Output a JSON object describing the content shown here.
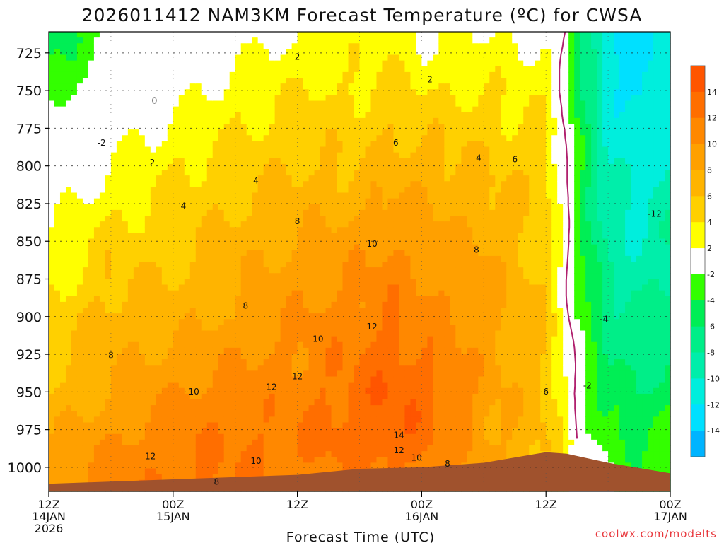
{
  "chart_data": {
    "type": "heatmap",
    "title": "2026011412 NAM3KM Forecast Temperature (ºC) for CWSA",
    "xlabel": "Forecast Time (UTC)",
    "credit": "coolwx.com/modelts",
    "y_axis": {
      "unit": "hPa",
      "range": [
        1016,
        711
      ],
      "ticks": [
        725,
        750,
        775,
        800,
        825,
        850,
        875,
        900,
        925,
        950,
        975,
        1000
      ],
      "tick_labels": [
        "725",
        "750",
        "775",
        "800",
        "825",
        "850",
        "875",
        "900",
        "925",
        "950",
        "975",
        "1000"
      ]
    },
    "x_axis": {
      "unit": "forecast hours",
      "range": [
        0,
        60
      ],
      "ticks": [
        {
          "hour": 0,
          "lines": [
            "12Z",
            "14JAN",
            "2026"
          ]
        },
        {
          "hour": 12,
          "lines": [
            "00Z",
            "15JAN"
          ]
        },
        {
          "hour": 24,
          "lines": [
            "12Z"
          ]
        },
        {
          "hour": 36,
          "lines": [
            "00Z",
            "16JAN"
          ]
        },
        {
          "hour": 48,
          "lines": [
            "12Z"
          ]
        },
        {
          "hour": 60,
          "lines": [
            "00Z",
            "17JAN"
          ]
        }
      ]
    },
    "colorbar": {
      "labels": [
        "14",
        "12",
        "10",
        "8",
        "6",
        "4",
        "2",
        "-2",
        "-4",
        "-6",
        "-8",
        "-10",
        "-12",
        "-14"
      ],
      "bins": [
        {
          "min": 14,
          "max": 16,
          "color": "#ff5500"
        },
        {
          "min": 12,
          "max": 14,
          "color": "#ff6e00"
        },
        {
          "min": 10,
          "max": 12,
          "color": "#ff8800"
        },
        {
          "min": 8,
          "max": 10,
          "color": "#ffa000"
        },
        {
          "min": 6,
          "max": 8,
          "color": "#ffb400"
        },
        {
          "min": 4,
          "max": 6,
          "color": "#ffd000"
        },
        {
          "min": 2,
          "max": 4,
          "color": "#ffff00"
        },
        {
          "min": -2,
          "max": 2,
          "color": "#ffffff"
        },
        {
          "min": -4,
          "max": -2,
          "color": "#33ff00"
        },
        {
          "min": -6,
          "max": -4,
          "color": "#00ee55"
        },
        {
          "min": -8,
          "max": -6,
          "color": "#00ee88"
        },
        {
          "min": -10,
          "max": -8,
          "color": "#00eeaa"
        },
        {
          "min": -12,
          "max": -10,
          "color": "#00eedd"
        },
        {
          "min": -14,
          "max": -12,
          "color": "#00e0ff"
        },
        {
          "min": -16,
          "max": -14,
          "color": "#00b4ff"
        }
      ]
    },
    "ground_color": "#a0522d",
    "freezing_line_color": "#b0206e",
    "ground_pressure": [
      {
        "hour": 0,
        "p": 1011
      },
      {
        "hour": 12,
        "p": 1008
      },
      {
        "hour": 24,
        "p": 1005
      },
      {
        "hour": 30,
        "p": 1001
      },
      {
        "hour": 36,
        "p": 1000
      },
      {
        "hour": 42,
        "p": 997
      },
      {
        "hour": 48,
        "p": 990
      },
      {
        "hour": 50,
        "p": 991
      },
      {
        "hour": 54,
        "p": 997
      },
      {
        "hour": 60,
        "p": 1004
      }
    ],
    "profiles_hours": [
      0,
      6,
      12,
      18,
      24,
      30,
      33,
      36,
      42,
      48,
      50,
      51,
      54,
      57,
      60
    ],
    "profiles_pressure": [
      715,
      750,
      800,
      850,
      900,
      950,
      985,
      1010
    ],
    "profiles_temp": [
      [
        -5,
        -3,
        0,
        2,
        4,
        6,
        8,
        9
      ],
      [
        -2,
        0,
        2,
        5,
        7,
        8,
        10,
        11
      ],
      [
        0,
        1,
        4,
        5,
        7,
        10,
        12,
        12
      ],
      [
        1,
        3,
        5,
        7,
        8,
        11,
        12,
        12
      ],
      [
        2,
        4,
        6,
        8,
        10,
        11,
        12,
        11
      ],
      [
        3,
        4,
        6,
        9,
        11,
        13,
        13,
        11
      ],
      [
        3,
        5,
        7,
        10,
        12,
        14,
        14,
        11
      ],
      [
        2,
        4,
        7,
        9,
        11,
        13,
        13,
        10
      ],
      [
        2,
        4,
        6,
        8,
        9,
        9,
        9,
        8
      ],
      [
        2,
        3,
        5,
        5,
        6,
        6,
        6,
        6
      ],
      [
        -1,
        -1,
        0,
        0,
        1,
        2,
        3,
        3
      ],
      [
        -5,
        -5,
        -3,
        -3,
        -2,
        -1,
        0,
        0
      ],
      [
        -12,
        -11,
        -10,
        -9,
        -7,
        -5,
        -3,
        -2
      ],
      [
        -13,
        -13,
        -11,
        -10,
        -8,
        -6,
        -4,
        -3
      ],
      [
        -11,
        -11,
        -10,
        -8,
        -7,
        -5,
        -3,
        -2
      ]
    ],
    "contour_labels": [
      {
        "text": "2",
        "hour": 24.0,
        "p": 728
      },
      {
        "text": "2",
        "hour": 36.8,
        "p": 743
      },
      {
        "text": "0",
        "hour": 10.2,
        "p": 757
      },
      {
        "text": "-2",
        "hour": 5.1,
        "p": 785
      },
      {
        "text": "6",
        "hour": 33.5,
        "p": 785
      },
      {
        "text": "2",
        "hour": 10.0,
        "p": 798
      },
      {
        "text": "4",
        "hour": 41.5,
        "p": 795
      },
      {
        "text": "6",
        "hour": 45.0,
        "p": 796
      },
      {
        "text": "4",
        "hour": 20.0,
        "p": 810
      },
      {
        "text": "4",
        "hour": 13.0,
        "p": 827
      },
      {
        "text": "8",
        "hour": 24.0,
        "p": 837
      },
      {
        "text": "-12",
        "hour": 58.5,
        "p": 832
      },
      {
        "text": "10",
        "hour": 31.2,
        "p": 852
      },
      {
        "text": "8",
        "hour": 41.3,
        "p": 856
      },
      {
        "text": "8",
        "hour": 19.0,
        "p": 893
      },
      {
        "text": "-4",
        "hour": 53.6,
        "p": 902
      },
      {
        "text": "12",
        "hour": 31.2,
        "p": 907
      },
      {
        "text": "10",
        "hour": 26.0,
        "p": 915
      },
      {
        "text": "8",
        "hour": 6.0,
        "p": 926
      },
      {
        "text": "12",
        "hour": 24.0,
        "p": 940
      },
      {
        "text": "-2",
        "hour": 52.0,
        "p": 946
      },
      {
        "text": "10",
        "hour": 14.0,
        "p": 950
      },
      {
        "text": "12",
        "hour": 21.5,
        "p": 947
      },
      {
        "text": "6",
        "hour": 48.0,
        "p": 950
      },
      {
        "text": "14",
        "hour": 33.8,
        "p": 979
      },
      {
        "text": "12",
        "hour": 33.8,
        "p": 989
      },
      {
        "text": "12",
        "hour": 9.8,
        "p": 993
      },
      {
        "text": "10",
        "hour": 20.0,
        "p": 996
      },
      {
        "text": "10",
        "hour": 35.5,
        "p": 994
      },
      {
        "text": "8",
        "hour": 38.5,
        "p": 998
      },
      {
        "text": "8",
        "hour": 16.2,
        "p": 1010
      }
    ]
  }
}
